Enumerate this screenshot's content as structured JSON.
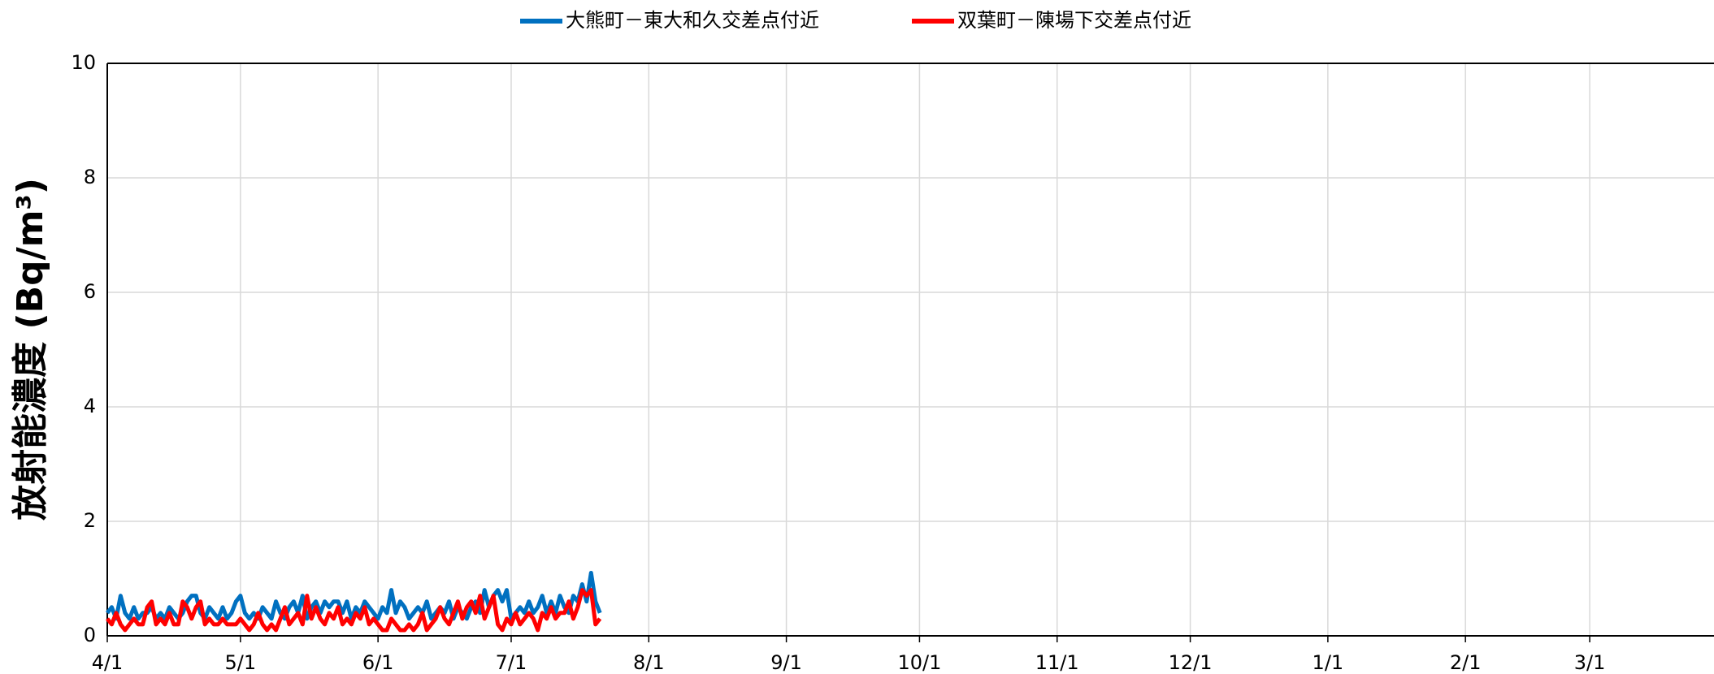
{
  "chart_data": {
    "type": "line",
    "y_label": "放射能濃度 (Bq/m³)",
    "x": [
      0,
      1,
      2,
      3,
      4,
      5,
      6,
      7,
      8,
      9,
      10,
      11,
      12,
      13,
      14,
      15,
      16,
      17,
      18,
      19,
      20,
      21,
      22,
      23,
      24,
      25,
      26,
      27,
      28,
      29,
      30,
      31,
      32,
      33,
      34,
      35,
      36,
      37,
      38,
      39,
      40,
      41,
      42,
      43,
      44,
      45,
      46,
      47,
      48,
      49,
      50,
      51,
      52,
      53,
      54,
      55,
      56,
      57,
      58,
      59,
      60,
      61,
      62,
      63,
      64,
      65,
      66,
      67,
      68,
      69,
      70,
      71,
      72,
      73,
      74,
      75,
      76,
      77,
      78,
      79,
      80,
      81,
      82,
      83,
      84,
      85,
      86,
      87,
      88,
      89,
      90,
      91,
      92,
      93,
      94,
      95,
      96,
      97,
      98,
      99,
      100,
      101,
      102,
      103,
      104,
      105,
      106,
      107,
      108,
      109,
      110,
      111
    ],
    "series": [
      {
        "name": "大熊町－東大和久交差点付近",
        "color": "#0070c0",
        "values": [
          0.4,
          0.5,
          0.3,
          0.7,
          0.4,
          0.3,
          0.5,
          0.3,
          0.4,
          0.4,
          0.5,
          0.3,
          0.4,
          0.3,
          0.5,
          0.4,
          0.3,
          0.4,
          0.6,
          0.7,
          0.7,
          0.4,
          0.3,
          0.5,
          0.4,
          0.3,
          0.5,
          0.3,
          0.4,
          0.6,
          0.7,
          0.4,
          0.3,
          0.4,
          0.3,
          0.5,
          0.4,
          0.3,
          0.6,
          0.4,
          0.3,
          0.5,
          0.6,
          0.4,
          0.7,
          0.3,
          0.5,
          0.6,
          0.4,
          0.6,
          0.5,
          0.6,
          0.6,
          0.4,
          0.6,
          0.3,
          0.5,
          0.4,
          0.6,
          0.5,
          0.4,
          0.3,
          0.5,
          0.4,
          0.8,
          0.4,
          0.6,
          0.5,
          0.3,
          0.4,
          0.5,
          0.4,
          0.6,
          0.3,
          0.4,
          0.5,
          0.4,
          0.6,
          0.3,
          0.5,
          0.4,
          0.3,
          0.5,
          0.6,
          0.4,
          0.8,
          0.5,
          0.7,
          0.8,
          0.6,
          0.8,
          0.3,
          0.4,
          0.5,
          0.4,
          0.6,
          0.4,
          0.5,
          0.7,
          0.4,
          0.6,
          0.4,
          0.7,
          0.5,
          0.4,
          0.7,
          0.6,
          0.9,
          0.6,
          1.1,
          0.6,
          0.4
        ]
      },
      {
        "name": "双葉町－陳場下交差点付近",
        "color": "#ff0000",
        "values": [
          0.3,
          0.2,
          0.4,
          0.2,
          0.1,
          0.2,
          0.3,
          0.2,
          0.2,
          0.5,
          0.6,
          0.2,
          0.3,
          0.2,
          0.4,
          0.2,
          0.2,
          0.6,
          0.5,
          0.3,
          0.5,
          0.6,
          0.2,
          0.3,
          0.2,
          0.2,
          0.3,
          0.2,
          0.2,
          0.2,
          0.3,
          0.2,
          0.1,
          0.2,
          0.4,
          0.2,
          0.1,
          0.2,
          0.1,
          0.3,
          0.5,
          0.2,
          0.3,
          0.4,
          0.2,
          0.7,
          0.3,
          0.5,
          0.3,
          0.2,
          0.4,
          0.3,
          0.5,
          0.2,
          0.3,
          0.2,
          0.4,
          0.3,
          0.5,
          0.2,
          0.3,
          0.2,
          0.1,
          0.1,
          0.3,
          0.2,
          0.1,
          0.1,
          0.2,
          0.1,
          0.2,
          0.4,
          0.1,
          0.2,
          0.3,
          0.5,
          0.3,
          0.2,
          0.4,
          0.6,
          0.3,
          0.5,
          0.6,
          0.4,
          0.7,
          0.3,
          0.5,
          0.7,
          0.2,
          0.1,
          0.3,
          0.2,
          0.4,
          0.2,
          0.3,
          0.4,
          0.3,
          0.1,
          0.4,
          0.3,
          0.5,
          0.3,
          0.4,
          0.4,
          0.6,
          0.3,
          0.5,
          0.8,
          0.7,
          0.8,
          0.2,
          0.3
        ]
      }
    ],
    "xlim": [
      0,
      362
    ],
    "xticks": [
      {
        "value": 0,
        "label": "4/1"
      },
      {
        "value": 30,
        "label": "5/1"
      },
      {
        "value": 61,
        "label": "6/1"
      },
      {
        "value": 91,
        "label": "7/1"
      },
      {
        "value": 122,
        "label": "8/1"
      },
      {
        "value": 153,
        "label": "9/1"
      },
      {
        "value": 183,
        "label": "10/1"
      },
      {
        "value": 214,
        "label": "11/1"
      },
      {
        "value": 244,
        "label": "12/1"
      },
      {
        "value": 275,
        "label": "1/1"
      },
      {
        "value": 306,
        "label": "2/1"
      },
      {
        "value": 334,
        "label": "3/1"
      }
    ],
    "ylim": [
      0,
      10
    ],
    "yticks": [
      0,
      2,
      4,
      6,
      8,
      10
    ],
    "grid": true,
    "legend": "top"
  }
}
